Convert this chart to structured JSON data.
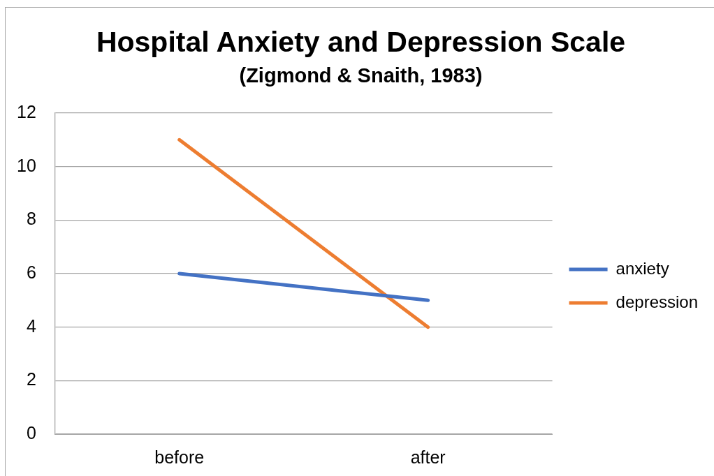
{
  "chart_data": {
    "type": "line",
    "title": "Hospital Anxiety and Depression Scale",
    "subtitle": "(Zigmond & Snaith, 1983)",
    "categories": [
      "before",
      "after"
    ],
    "series": [
      {
        "name": "anxiety",
        "color": "#4472c4",
        "values": [
          6,
          5
        ]
      },
      {
        "name": "depression",
        "color": "#ed7d31",
        "values": [
          11,
          4
        ]
      }
    ],
    "ylim": [
      0,
      12
    ],
    "yticks": [
      0,
      2,
      4,
      6,
      8,
      10,
      12
    ],
    "grid": "y",
    "legend": "right",
    "marker": "none",
    "line_style": "solid"
  }
}
